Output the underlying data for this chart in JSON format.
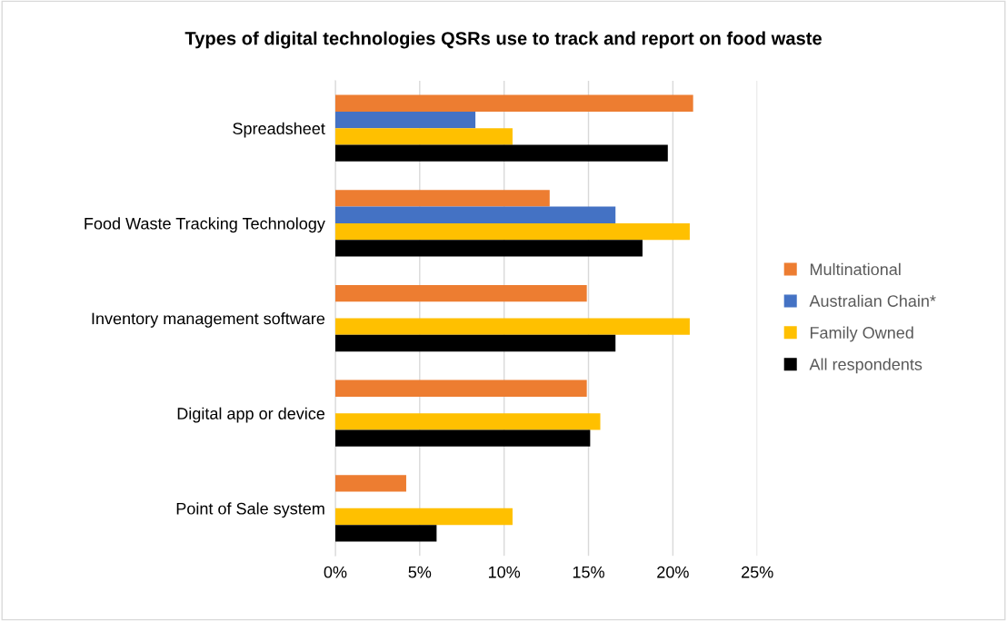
{
  "chart_data": {
    "type": "bar",
    "orientation": "horizontal",
    "title": "Types of digital technologies QSRs use to track and report on food waste",
    "categories": [
      "Spreadsheet",
      "Food Waste Tracking Technology",
      "Inventory management software",
      "Digital app or device",
      "Point of Sale system"
    ],
    "series": [
      {
        "name": "Multinational",
        "color": "#ed7d31",
        "values": [
          21.2,
          12.7,
          14.9,
          14.9,
          4.2
        ]
      },
      {
        "name": "Australian Chain*",
        "color": "#4472c4",
        "values": [
          8.3,
          16.6,
          null,
          null,
          null
        ]
      },
      {
        "name": "Family Owned",
        "color": "#ffc000",
        "values": [
          10.5,
          21.0,
          21.0,
          15.7,
          10.5
        ]
      },
      {
        "name": "All respondents",
        "color": "#000000",
        "values": [
          19.7,
          18.2,
          16.6,
          15.1,
          6.0
        ]
      }
    ],
    "xlim": [
      0,
      25
    ],
    "xticks": [
      {
        "value": 0,
        "label": "0%"
      },
      {
        "value": 5,
        "label": "5%"
      },
      {
        "value": 10,
        "label": "10%"
      },
      {
        "value": 15,
        "label": "15%"
      },
      {
        "value": 20,
        "label": "20%"
      },
      {
        "value": 25,
        "label": "25%"
      }
    ],
    "grid": "x",
    "legend": "right"
  }
}
